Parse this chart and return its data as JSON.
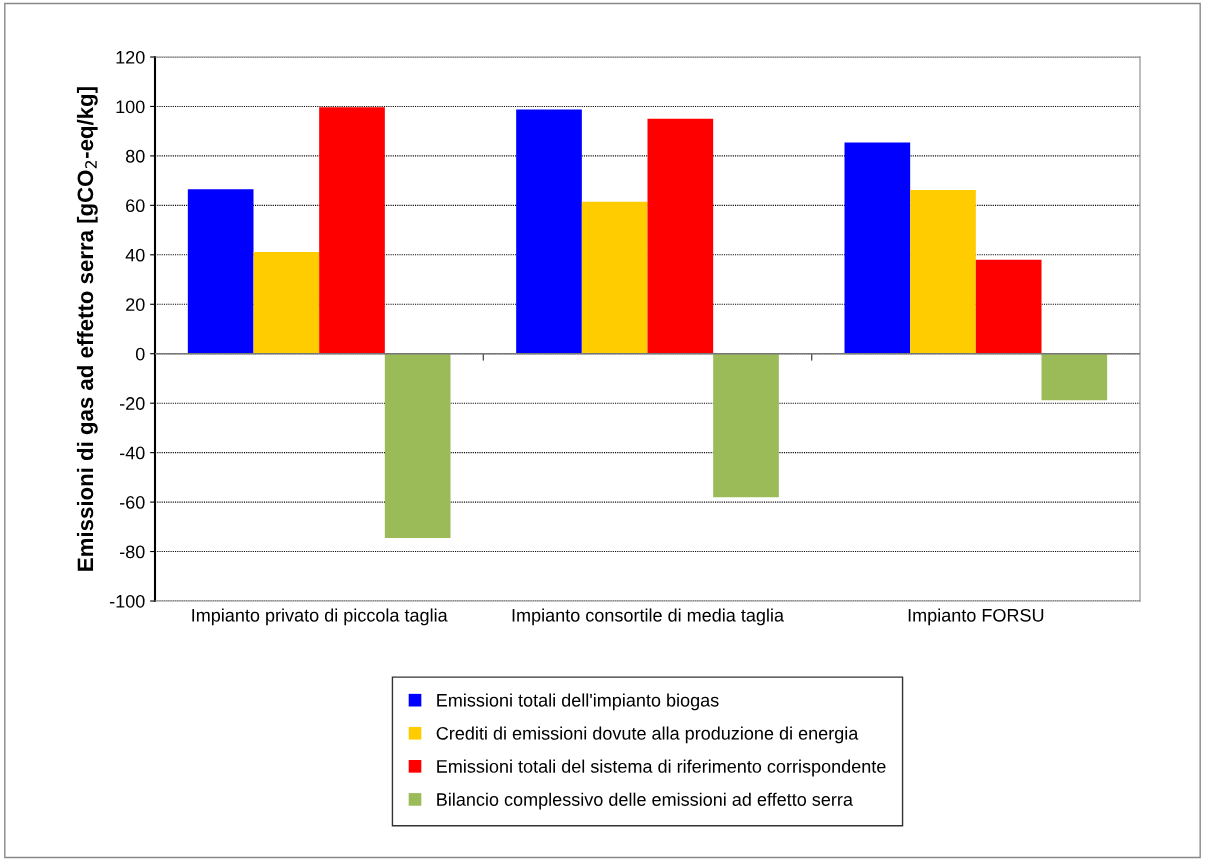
{
  "chart_data": {
    "type": "bar",
    "ylabel": "Emissioni di gas ad effetto serra [gCO$_{2}$-eq/kg]",
    "categories": [
      "Impianto privato di piccola taglia",
      "Impianto consortile di media taglia",
      "Impianto FORSU"
    ],
    "series": [
      {
        "name": "Emissioni totali dell'impianto biogas",
        "color": "#0000ff",
        "values": [
          66.5,
          98.8,
          85.4
        ]
      },
      {
        "name": "Crediti di emissioni dovute alla produzione di energia",
        "color": "#ffcc00",
        "values": [
          41.1,
          61.5,
          66.2
        ]
      },
      {
        "name": "Emissioni totali del sistema di riferimento corrispondente",
        "color": "#ff0000",
        "values": [
          99.7,
          95.0,
          38.0
        ]
      },
      {
        "name": "Bilancio complessivo delle emissioni ad effetto serra",
        "color": "#9bbb59",
        "values": [
          -74.5,
          -58.0,
          -18.8
        ]
      }
    ],
    "ylim": [
      -100,
      120
    ],
    "yticks": [
      -100,
      -80,
      -60,
      -40,
      -20,
      0,
      20,
      40,
      60,
      80,
      100,
      120
    ],
    "grid": "y",
    "legend": "bottom"
  }
}
